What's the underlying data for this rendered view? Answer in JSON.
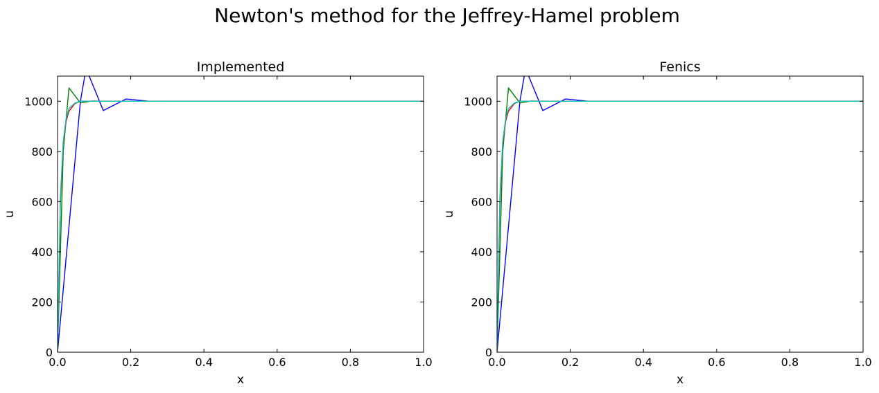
{
  "figure": {
    "title": "Newton's method for the Jeffrey-Hamel problem"
  },
  "chart_data": [
    {
      "type": "line",
      "title": "Implemented",
      "xlabel": "x",
      "ylabel": "u",
      "xlim": [
        0,
        1.0
      ],
      "ylim": [
        0,
        1100
      ],
      "xticks": [
        "0.0",
        "0.2",
        "0.4",
        "0.6",
        "0.8",
        "1.0"
      ],
      "yticks": [
        "0",
        "200",
        "400",
        "600",
        "800",
        "1000"
      ],
      "grid": false,
      "series": [
        {
          "color": "#0000ff",
          "x": [
            0,
            0.0625,
            0.078,
            0.125,
            0.1875,
            0.25,
            1.0
          ],
          "y": [
            0,
            1000,
            1130,
            963,
            1009,
            1000,
            1000
          ]
        },
        {
          "color": "#008000",
          "x": [
            0,
            0.0156,
            0.03125,
            0.0625,
            0.09375,
            0.125,
            1.0
          ],
          "y": [
            0,
            800,
            1053,
            993,
            1001,
            1000,
            1000
          ]
        },
        {
          "color": "#ff0000",
          "x": [
            0,
            0.0078,
            0.0156,
            0.0234,
            0.03125,
            0.0469,
            0.0625,
            0.078,
            0.1,
            1.0
          ],
          "y": [
            0,
            600,
            830,
            920,
            960,
            990,
            1000,
            1000,
            1000,
            1000
          ]
        },
        {
          "color": "#00bfbf",
          "x": [
            0,
            0.0078,
            0.0156,
            0.0234,
            0.03125,
            0.0469,
            0.0625,
            0.078,
            0.1,
            1.0
          ],
          "y": [
            0,
            620,
            840,
            930,
            970,
            992,
            1000,
            1000,
            1000,
            1000
          ]
        }
      ]
    },
    {
      "type": "line",
      "title": "Fenics",
      "xlabel": "x",
      "ylabel": "u",
      "xlim": [
        0,
        1.0
      ],
      "ylim": [
        0,
        1100
      ],
      "xticks": [
        "0.0",
        "0.2",
        "0.4",
        "0.6",
        "0.8",
        "1.0"
      ],
      "yticks": [
        "0",
        "200",
        "400",
        "600",
        "800",
        "1000"
      ],
      "grid": false,
      "series": [
        {
          "color": "#0000ff",
          "x": [
            0,
            0.0625,
            0.078,
            0.125,
            0.1875,
            0.25,
            1.0
          ],
          "y": [
            0,
            1000,
            1130,
            963,
            1009,
            1000,
            1000
          ]
        },
        {
          "color": "#008000",
          "x": [
            0,
            0.0156,
            0.03125,
            0.0625,
            0.09375,
            0.125,
            1.0
          ],
          "y": [
            0,
            800,
            1053,
            993,
            1001,
            1000,
            1000
          ]
        },
        {
          "color": "#ff0000",
          "x": [
            0,
            0.0078,
            0.0156,
            0.0234,
            0.03125,
            0.0469,
            0.0625,
            0.078,
            0.1,
            1.0
          ],
          "y": [
            0,
            600,
            830,
            920,
            960,
            990,
            1000,
            1000,
            1000,
            1000
          ]
        },
        {
          "color": "#00bfbf",
          "x": [
            0,
            0.0078,
            0.0156,
            0.0234,
            0.03125,
            0.0469,
            0.0625,
            0.078,
            0.1,
            1.0
          ],
          "y": [
            0,
            620,
            840,
            930,
            970,
            992,
            1000,
            1000,
            1000,
            1000
          ]
        }
      ]
    }
  ]
}
